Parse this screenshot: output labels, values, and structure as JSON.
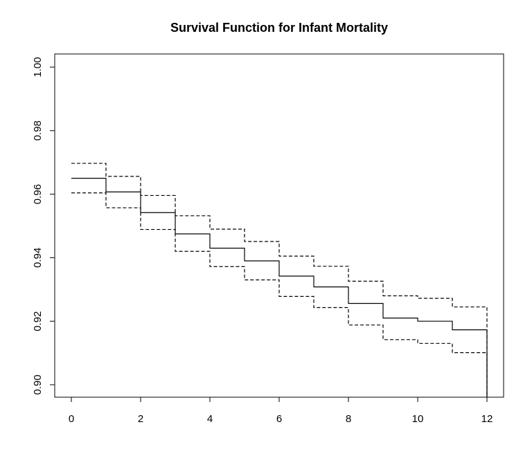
{
  "chart_data": {
    "type": "line",
    "title": "Survival Function for Infant Mortality",
    "xlabel": "",
    "ylabel": "",
    "xlim": [
      0,
      12
    ],
    "ylim": [
      0.9,
      1.0
    ],
    "x_ticks": [
      "0",
      "2",
      "4",
      "6",
      "8",
      "10",
      "12"
    ],
    "y_ticks": [
      "0.90",
      "0.92",
      "0.94",
      "0.96",
      "0.98",
      "1.00"
    ],
    "grid": false,
    "legend": "none",
    "step": true,
    "x": [
      0,
      1,
      2,
      3,
      4,
      5,
      6,
      7,
      8,
      9,
      10,
      11,
      12
    ],
    "series": [
      {
        "style": "solid",
        "values": [
          0.965,
          0.9607,
          0.9542,
          0.9475,
          0.943,
          0.939,
          0.9342,
          0.9308,
          0.9256,
          0.921,
          0.92,
          0.9173,
          0.9173
        ]
      },
      {
        "style": "dashed",
        "values": [
          0.9697,
          0.9656,
          0.9596,
          0.9532,
          0.949,
          0.9451,
          0.9405,
          0.9373,
          0.9326,
          0.928,
          0.9272,
          0.9245,
          0.9245
        ]
      },
      {
        "style": "dashed",
        "values": [
          0.9604,
          0.9557,
          0.9489,
          0.942,
          0.9372,
          0.933,
          0.9278,
          0.9243,
          0.9188,
          0.9142,
          0.913,
          0.9101,
          0.9101
        ]
      }
    ]
  }
}
